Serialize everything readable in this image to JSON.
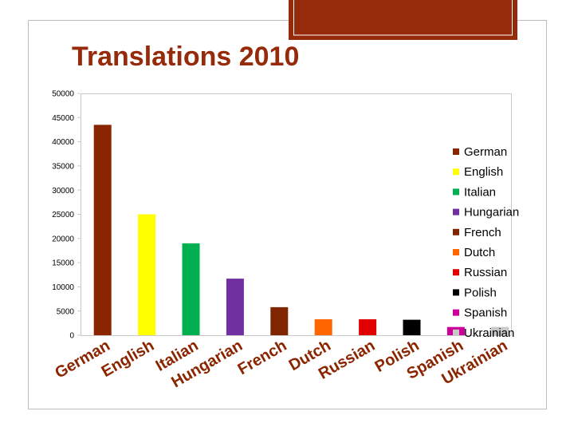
{
  "chart_data": {
    "type": "bar",
    "title": "Translations 2010",
    "categories": [
      "German",
      "English",
      "Italian",
      "Hungarian",
      "French",
      "Dutch",
      "Russian",
      "Polish",
      "Spanish",
      "Ukrainian"
    ],
    "values": [
      43500,
      25000,
      19000,
      11700,
      5800,
      3300,
      3300,
      3200,
      1700,
      1700
    ],
    "colors": [
      "#8b2500",
      "#ffff00",
      "#00b050",
      "#7030a0",
      "#7f2600",
      "#ff6600",
      "#e00000",
      "#000000",
      "#cc0099",
      "#c8c8c8"
    ],
    "ylim": [
      0,
      50000
    ],
    "yticks": [
      0,
      5000,
      10000,
      15000,
      20000,
      25000,
      30000,
      35000,
      40000,
      45000,
      50000
    ],
    "grid": false,
    "legend": "right"
  }
}
